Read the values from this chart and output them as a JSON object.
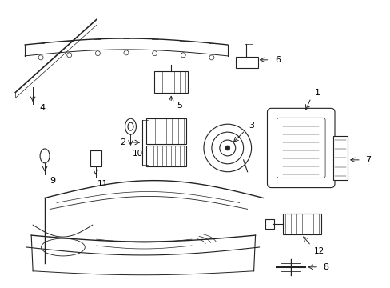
{
  "bg_color": "#ffffff",
  "line_color": "#222222",
  "label_color": "#000000",
  "lw": 0.8
}
